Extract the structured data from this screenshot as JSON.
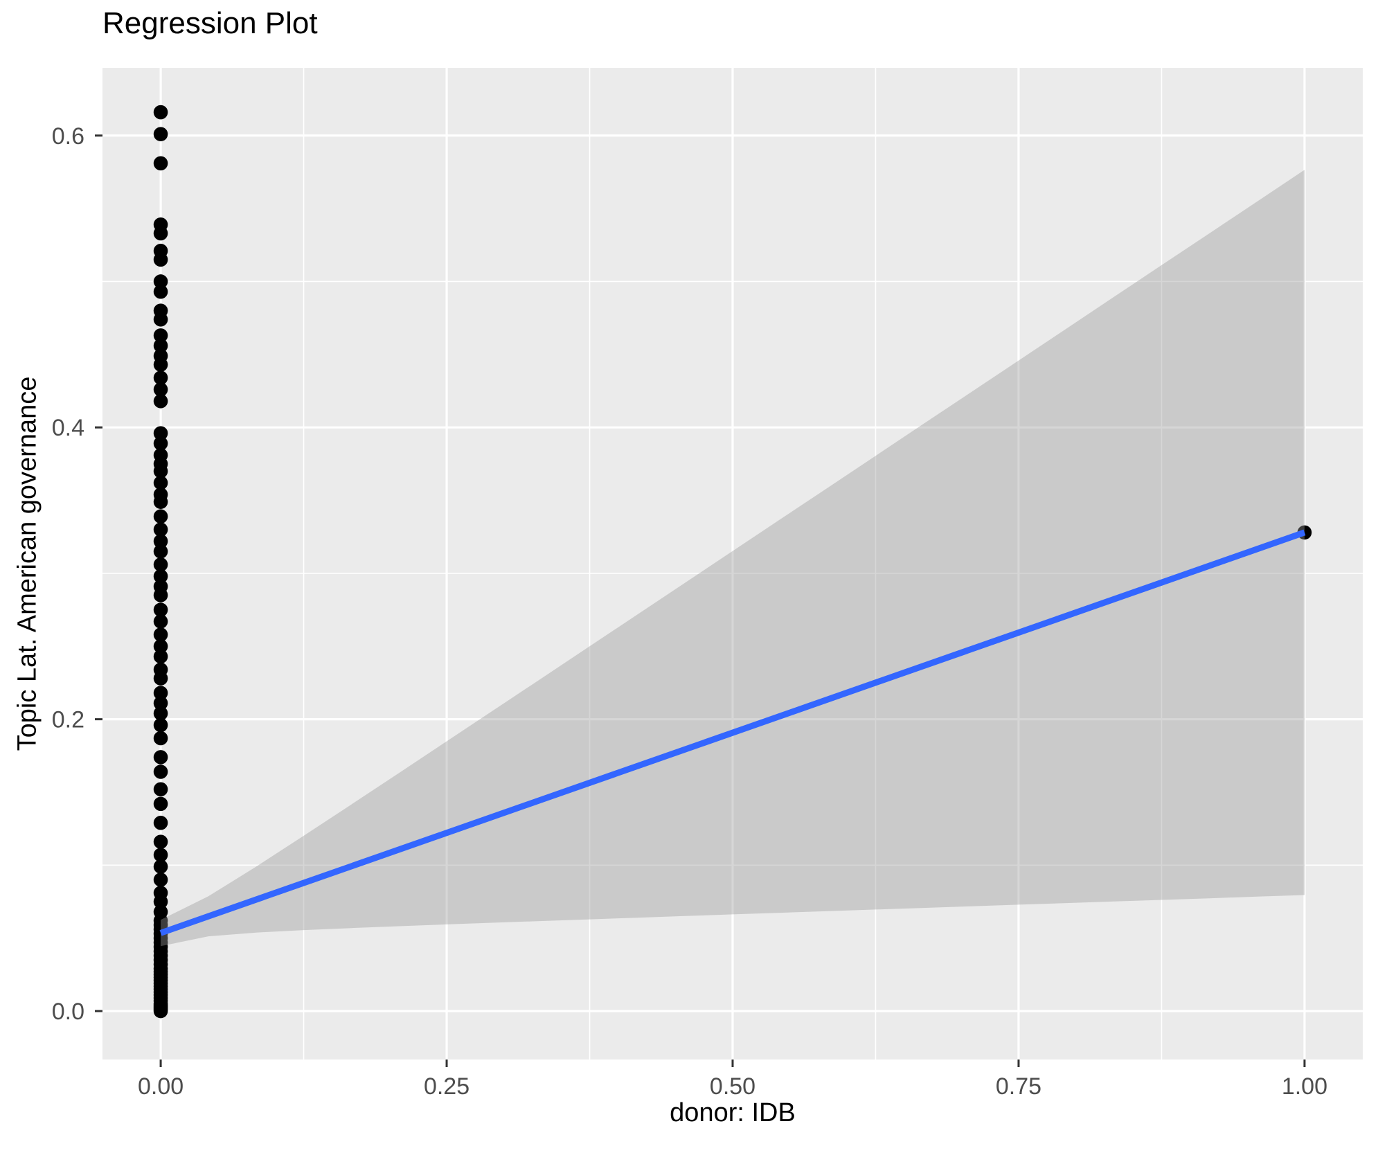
{
  "chart_data": {
    "type": "scatter",
    "title": "Regression Plot",
    "xlabel": "donor: IDB",
    "ylabel": "Topic Lat. American governance",
    "x_ticks": {
      "values": [
        0,
        0.25,
        0.5,
        0.75,
        1.0
      ],
      "labels": [
        "0.00",
        "0.25",
        "0.50",
        "0.75",
        "1.00"
      ]
    },
    "y_ticks": {
      "values": [
        0,
        0.2,
        0.4,
        0.6
      ],
      "labels": [
        "0.0",
        "0.2",
        "0.4",
        "0.6"
      ]
    },
    "x_minor": [
      0.125,
      0.375,
      0.625,
      0.875
    ],
    "y_minor": [
      0.1,
      0.3,
      0.5
    ],
    "xlim": [
      -0.0509,
      1.0509
    ],
    "ylim": [
      -0.0332,
      0.6464
    ],
    "grid": "major and minor white gridlines on grey panel, legend none",
    "points_x0": [
      0.616,
      0.601,
      0.581,
      0.539,
      0.533,
      0.521,
      0.515,
      0.5,
      0.493,
      0.48,
      0.474,
      0.463,
      0.456,
      0.449,
      0.443,
      0.434,
      0.426,
      0.418,
      0.396,
      0.389,
      0.381,
      0.375,
      0.37,
      0.362,
      0.354,
      0.349,
      0.339,
      0.33,
      0.322,
      0.315,
      0.306,
      0.298,
      0.291,
      0.285,
      0.275,
      0.267,
      0.258,
      0.25,
      0.243,
      0.234,
      0.228,
      0.218,
      0.211,
      0.204,
      0.196,
      0.187,
      0.174,
      0.164,
      0.152,
      0.142,
      0.129,
      0.116,
      0.107,
      0.099,
      0.09,
      0.081,
      0.075,
      0.068,
      0.062,
      0.059,
      0.056,
      0.053,
      0.05,
      0.047,
      0.044,
      0.041,
      0.038,
      0.035,
      0.032,
      0.029,
      0.027,
      0.025,
      0.023,
      0.021,
      0.019,
      0.017,
      0.015,
      0.013,
      0.011,
      0.009,
      0.007,
      0.005,
      0.004,
      0.003,
      0.002,
      0.001,
      0.0
    ],
    "point_x1": {
      "x": 1.0,
      "y": 0.328
    },
    "fit": {
      "intercept": 0.0535,
      "slope": 0.2745,
      "ci_halfwidth_at_x0": 0.009,
      "ci_halfwidth_at_x1": 0.2485,
      "band_at_x0": [
        0.044,
        0.062
      ],
      "band_at_x1": [
        0.079,
        0.576
      ]
    },
    "colors": {
      "panel_bg": "#EBEBEB",
      "grid": "#FFFFFF",
      "point": "#000000",
      "line": "#3366FF",
      "ribbon_fill": "#999999",
      "ribbon_opacity": 0.4,
      "tick_mark": "#333333",
      "tick_label": "#4D4D4D",
      "title_color": "#000000"
    }
  }
}
